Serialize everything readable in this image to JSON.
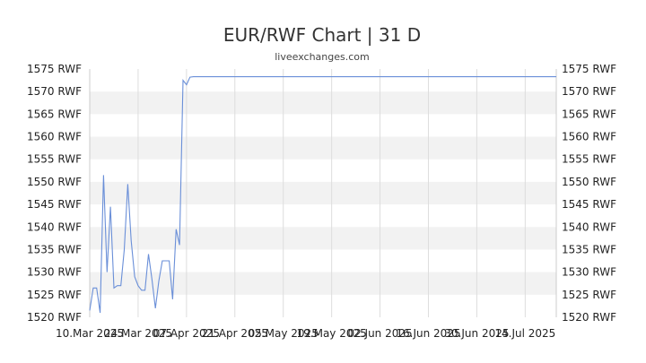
{
  "chart_data": {
    "type": "line",
    "title": "EUR/RWF Chart | 31 D",
    "subtitle": "liveexchanges.com",
    "xlabel": "",
    "ylabel": "",
    "ylim": [
      1520,
      1575
    ],
    "y_ticks": [
      1520,
      1525,
      1530,
      1535,
      1540,
      1545,
      1550,
      1555,
      1560,
      1565,
      1570,
      1575
    ],
    "y_tick_suffix": " RWF",
    "xlim": [
      "2025-03-10",
      "2025-07-23"
    ],
    "x_ticks": [
      {
        "date": "2025-03-10",
        "label": "10.Mar 2025"
      },
      {
        "date": "2025-03-24",
        "label": "24.Mar 2025"
      },
      {
        "date": "2025-04-07",
        "label": "07.Apr 2025"
      },
      {
        "date": "2025-04-21",
        "label": "21.Apr 2025"
      },
      {
        "date": "2025-05-05",
        "label": "05.May 2025"
      },
      {
        "date": "2025-05-19",
        "label": "19.May 2025"
      },
      {
        "date": "2025-06-02",
        "label": "02.Jun 2025"
      },
      {
        "date": "2025-06-16",
        "label": "16.Jun 2025"
      },
      {
        "date": "2025-06-30",
        "label": "30.Jun 2025"
      },
      {
        "date": "2025-07-14",
        "label": "14.Jul 2025"
      }
    ],
    "grid": true,
    "band_color": "#f2f2f2",
    "line_color": "#6a8fd8",
    "series": [
      {
        "points": [
          [
            "2025-03-10",
            1521.5
          ],
          [
            "2025-03-11",
            1526.5
          ],
          [
            "2025-03-12",
            1526.5
          ],
          [
            "2025-03-13",
            1521.0
          ],
          [
            "2025-03-14",
            1551.5
          ],
          [
            "2025-03-15",
            1530.0
          ],
          [
            "2025-03-16",
            1544.5
          ],
          [
            "2025-03-17",
            1526.5
          ],
          [
            "2025-03-18",
            1527.0
          ],
          [
            "2025-03-19",
            1527.0
          ],
          [
            "2025-03-20",
            1535.0
          ],
          [
            "2025-03-21",
            1549.5
          ],
          [
            "2025-03-22",
            1537.0
          ],
          [
            "2025-03-23",
            1529.0
          ],
          [
            "2025-03-24",
            1527.0
          ],
          [
            "2025-03-25",
            1526.0
          ],
          [
            "2025-03-26",
            1526.0
          ],
          [
            "2025-03-27",
            1534.0
          ],
          [
            "2025-03-28",
            1528.5
          ],
          [
            "2025-03-29",
            1522.0
          ],
          [
            "2025-03-30",
            1528.0
          ],
          [
            "2025-03-31",
            1532.5
          ],
          [
            "2025-04-01",
            1532.5
          ],
          [
            "2025-04-02",
            1532.5
          ],
          [
            "2025-04-03",
            1524.0
          ],
          [
            "2025-04-04",
            1539.5
          ],
          [
            "2025-04-05",
            1536.0
          ],
          [
            "2025-04-06",
            1572.5
          ],
          [
            "2025-04-07",
            1571.5
          ],
          [
            "2025-04-08",
            1573.2
          ],
          [
            "2025-04-09",
            1573.3
          ],
          [
            "2025-04-15",
            1573.3
          ],
          [
            "2025-05-01",
            1573.3
          ],
          [
            "2025-06-01",
            1573.3
          ],
          [
            "2025-07-01",
            1573.3
          ],
          [
            "2025-07-23",
            1573.3
          ]
        ]
      }
    ]
  }
}
